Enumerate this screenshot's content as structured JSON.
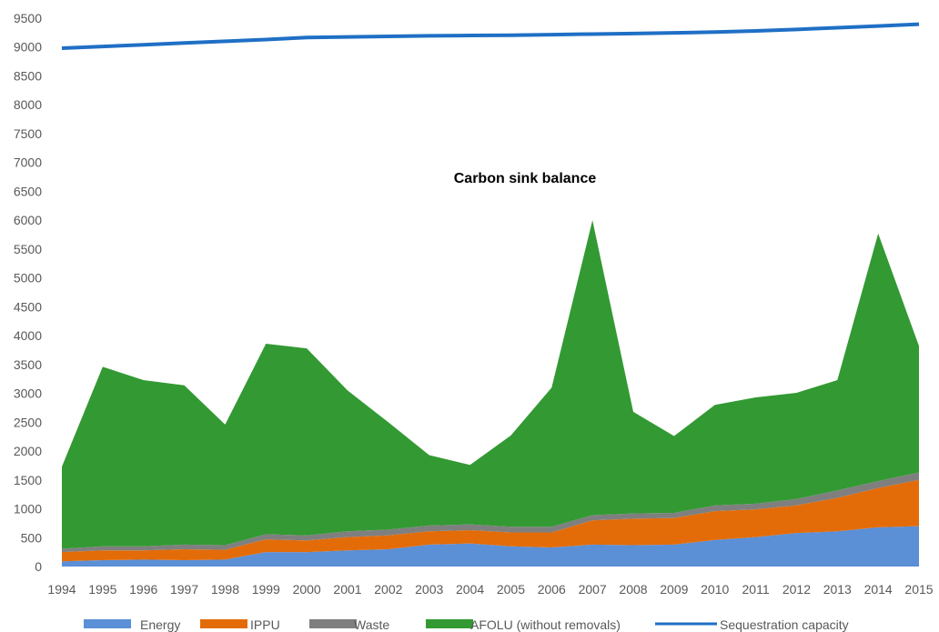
{
  "chart_data": {
    "type": "area",
    "title": "Carbon sink balance",
    "xlabel": "",
    "ylabel": "",
    "x": [
      "1994",
      "1995",
      "1996",
      "1997",
      "1998",
      "1999",
      "2000",
      "2001",
      "2002",
      "2003",
      "2004",
      "2005",
      "2006",
      "2007",
      "2008",
      "2009",
      "2010",
      "2011",
      "2012",
      "2013",
      "2014",
      "2015"
    ],
    "ylim": [
      0,
      9500
    ],
    "yticks": [
      0,
      500,
      1000,
      1500,
      2000,
      2500,
      3000,
      3500,
      4000,
      4500,
      5000,
      5500,
      6000,
      6500,
      7000,
      7500,
      8000,
      8500,
      9000,
      9500
    ],
    "stacked": true,
    "grid": false,
    "legend_position": "bottom",
    "series": [
      {
        "name": "Energy",
        "kind": "area",
        "color": "#5b8fd6",
        "values": [
          90,
          110,
          120,
          110,
          120,
          250,
          250,
          280,
          300,
          380,
          400,
          350,
          330,
          380,
          370,
          380,
          460,
          510,
          580,
          610,
          680,
          700
        ]
      },
      {
        "name": "IPPU",
        "kind": "area",
        "color": "#e36c09",
        "values": [
          160,
          170,
          160,
          190,
          170,
          220,
          200,
          230,
          240,
          230,
          230,
          240,
          260,
          420,
          460,
          460,
          500,
          480,
          480,
          580,
          680,
          800
        ]
      },
      {
        "name": "Waste",
        "kind": "area",
        "color": "#7f7f7f",
        "values": [
          60,
          70,
          70,
          80,
          80,
          90,
          90,
          100,
          100,
          100,
          100,
          100,
          100,
          90,
          90,
          90,
          100,
          100,
          110,
          130,
          120,
          130
        ]
      },
      {
        "name": "AFOLU (without removals)",
        "kind": "area",
        "color": "#339933",
        "values": [
          1420,
          3110,
          2880,
          2760,
          2090,
          3300,
          3240,
          2440,
          1860,
          1220,
          1030,
          1580,
          2410,
          5110,
          1760,
          1330,
          1740,
          1840,
          1840,
          1910,
          4290,
          2190
        ]
      },
      {
        "name": "Sequestration capacity",
        "kind": "line",
        "color": "#1f6fc5",
        "values": [
          8980,
          9010,
          9040,
          9070,
          9100,
          9130,
          9165,
          9175,
          9185,
          9195,
          9200,
          9205,
          9215,
          9225,
          9235,
          9245,
          9260,
          9280,
          9305,
          9335,
          9365,
          9395
        ]
      }
    ]
  }
}
